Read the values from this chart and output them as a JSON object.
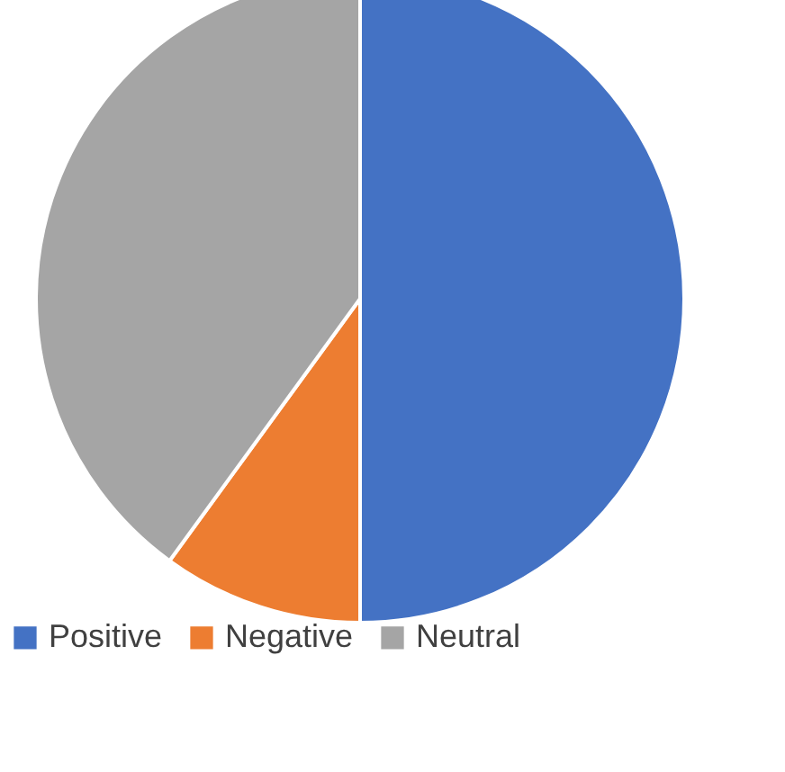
{
  "chart_data": {
    "type": "pie",
    "categories": [
      "Positive",
      "Negative",
      "Neutral"
    ],
    "values": [
      50,
      10,
      40
    ],
    "colors": [
      "#4472c4",
      "#ed7d31",
      "#a5a5a5"
    ],
    "legend": "bottom"
  }
}
